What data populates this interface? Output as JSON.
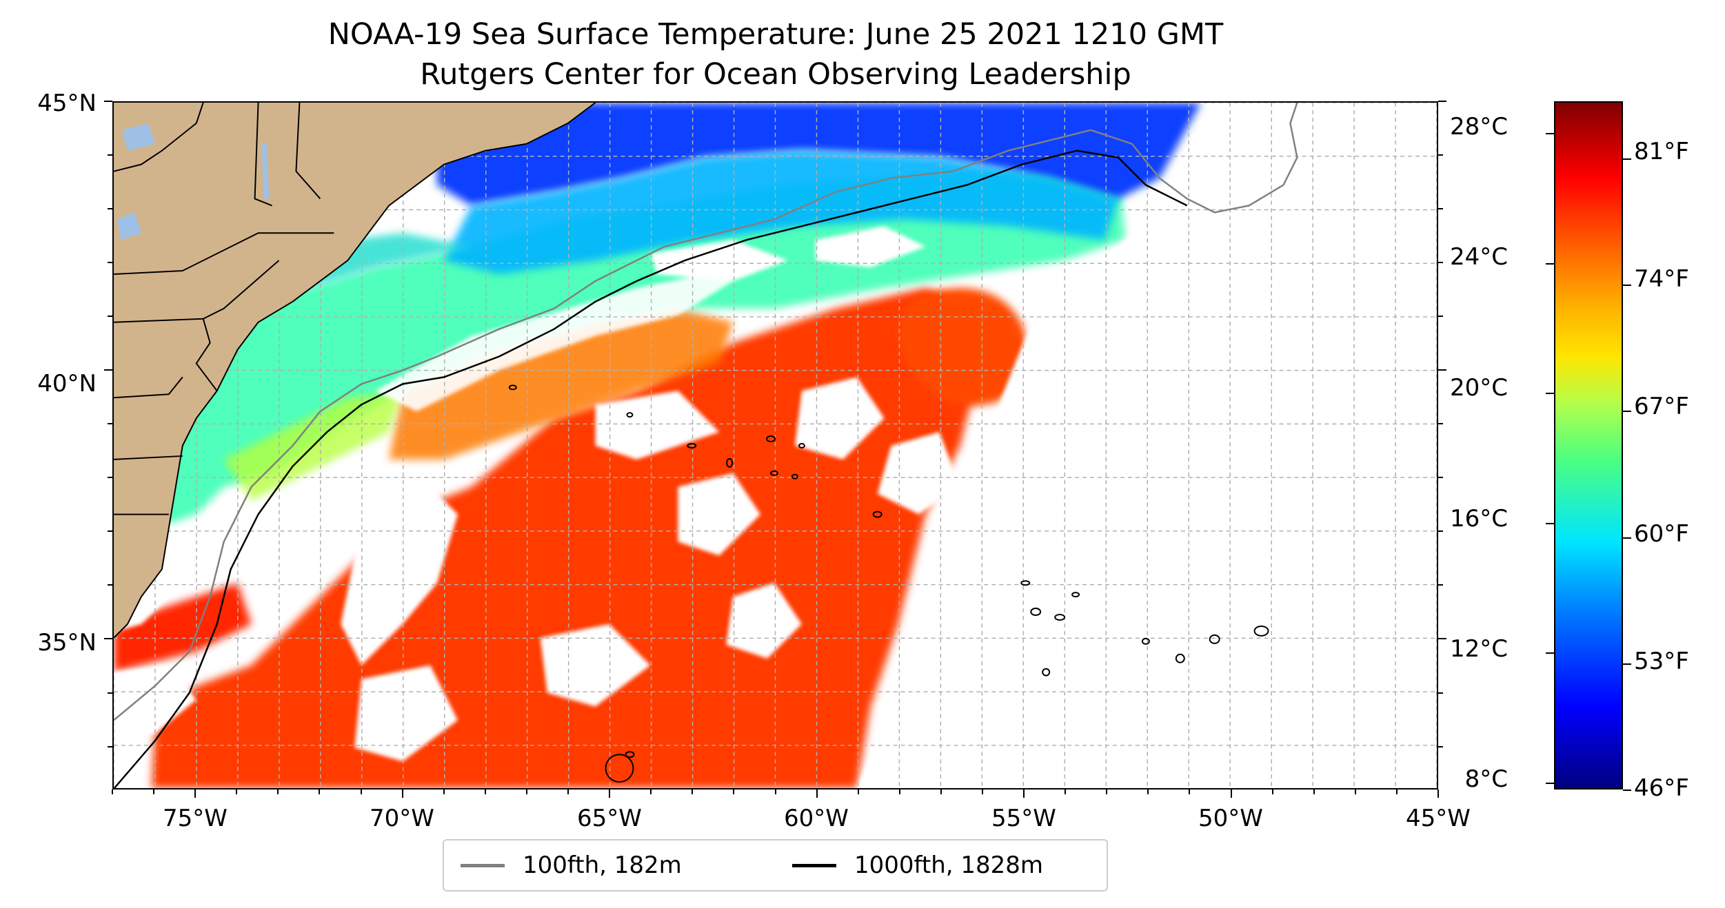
{
  "title": {
    "line1": "NOAA-19 Sea Surface Temperature: June 25 2021 1210 GMT",
    "line2": "Rutgers Center for Ocean Observing Leadership"
  },
  "map": {
    "lon_range": [
      -77,
      -45
    ],
    "lat_range": [
      32.2,
      45
    ],
    "lat_ticks": [
      {
        "value": 45,
        "label": "45°N"
      },
      {
        "value": 40,
        "label": "40°N"
      },
      {
        "value": 35,
        "label": "35°N"
      }
    ],
    "lon_ticks": [
      {
        "value": -75,
        "label": "75°W"
      },
      {
        "value": -70,
        "label": "70°W"
      },
      {
        "value": -65,
        "label": "65°W"
      },
      {
        "value": -60,
        "label": "60°W"
      },
      {
        "value": -55,
        "label": "55°W"
      },
      {
        "value": -50,
        "label": "50°W"
      },
      {
        "value": -45,
        "label": "45°W"
      }
    ],
    "grid": true,
    "colors": {
      "land": "#d2b48c",
      "lakes": "#9fc0e6",
      "contour_100fth": "#808080",
      "contour_1000fth": "#000000"
    }
  },
  "colorbar": {
    "celsius_range": [
      7.8,
      29
    ],
    "celsius_labels": [
      {
        "value": 28,
        "label": "28°C"
      },
      {
        "value": 24,
        "label": "24°C"
      },
      {
        "value": 20,
        "label": "20°C"
      },
      {
        "value": 16,
        "label": "16°C"
      },
      {
        "value": 12,
        "label": "12°C"
      },
      {
        "value": 8,
        "label": "8°C"
      }
    ],
    "fahrenheit_labels": [
      {
        "value": 81,
        "label": "81°F"
      },
      {
        "value": 74,
        "label": "74°F"
      },
      {
        "value": 67,
        "label": "67°F"
      },
      {
        "value": 60,
        "label": "60°F"
      },
      {
        "value": 53,
        "label": "53°F"
      },
      {
        "value": 46,
        "label": "46°F"
      }
    ],
    "colormap": "jet"
  },
  "legend": {
    "items": [
      {
        "label": "100fth, 182m",
        "color": "#808080"
      },
      {
        "label": "1000fth, 1828m",
        "color": "#000000"
      }
    ]
  }
}
